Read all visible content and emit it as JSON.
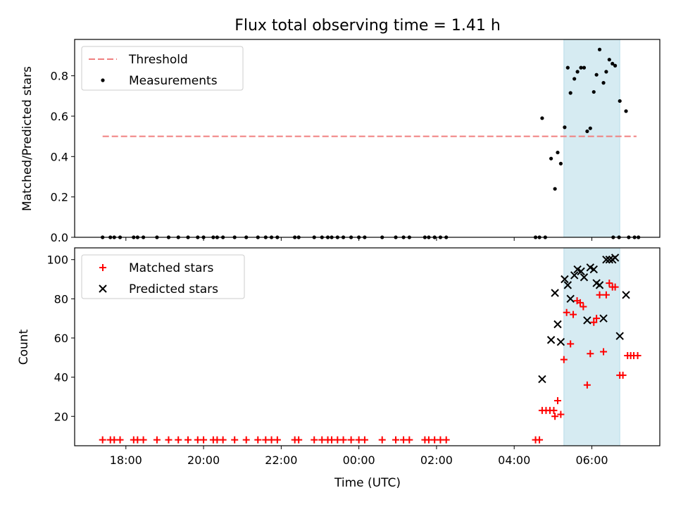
{
  "chart_data": {
    "type": "scatter",
    "title": "Flux total observing time = 1.41 h",
    "xlabel": "Time (UTC)",
    "x_tick_labels": [
      "18:00",
      "20:00",
      "22:00",
      "00:00",
      "02:00",
      "04:00",
      "06:00"
    ],
    "x_tick_hours": [
      18,
      20,
      22,
      24,
      26,
      28,
      30
    ],
    "xlim_hours": [
      16.68,
      31.75
    ],
    "shaded_span_hours": [
      29.28,
      30.72
    ],
    "colors": {
      "threshold": "#f08080",
      "matched": "#ff0000",
      "predicted": "#000000",
      "span": "#add8e6"
    },
    "panels": [
      {
        "ylabel": "Matched/Predicted stars",
        "ylim": [
          0,
          0.98
        ],
        "y_ticks": [
          "0.0",
          "0.2",
          "0.4",
          "0.6",
          "0.8"
        ],
        "y_tick_values": [
          0,
          0.2,
          0.4,
          0.6,
          0.8
        ],
        "legend": {
          "placement": "upper left",
          "entries": [
            "Threshold",
            "Measurements"
          ]
        },
        "threshold": {
          "name": "Threshold",
          "y": 0.5,
          "x_range_hours": [
            17.4,
            31.15
          ]
        },
        "series": [
          {
            "name": "Measurements",
            "marker": "dot",
            "points": [
              [
                17.4,
                0
              ],
              [
                17.6,
                0
              ],
              [
                17.7,
                0
              ],
              [
                17.85,
                0
              ],
              [
                18.2,
                0
              ],
              [
                18.3,
                0
              ],
              [
                18.45,
                0
              ],
              [
                18.8,
                0
              ],
              [
                19.1,
                0
              ],
              [
                19.35,
                0
              ],
              [
                19.6,
                0
              ],
              [
                19.85,
                0
              ],
              [
                20.0,
                0
              ],
              [
                20.25,
                0
              ],
              [
                20.35,
                0
              ],
              [
                20.5,
                0
              ],
              [
                20.8,
                0
              ],
              [
                21.1,
                0
              ],
              [
                21.4,
                0
              ],
              [
                21.6,
                0
              ],
              [
                21.75,
                0
              ],
              [
                21.9,
                0
              ],
              [
                22.35,
                0
              ],
              [
                22.45,
                0
              ],
              [
                22.85,
                0
              ],
              [
                23.05,
                0
              ],
              [
                23.2,
                0
              ],
              [
                23.3,
                0
              ],
              [
                23.45,
                0
              ],
              [
                23.6,
                0
              ],
              [
                23.8,
                0
              ],
              [
                24.0,
                0
              ],
              [
                24.15,
                0
              ],
              [
                24.6,
                0
              ],
              [
                24.95,
                0
              ],
              [
                25.15,
                0
              ],
              [
                25.3,
                0
              ],
              [
                25.7,
                0
              ],
              [
                25.8,
                0
              ],
              [
                25.95,
                0
              ],
              [
                26.1,
                0
              ],
              [
                26.25,
                0
              ],
              [
                28.55,
                0
              ],
              [
                28.65,
                0
              ],
              [
                28.8,
                0
              ],
              [
                30.55,
                0
              ],
              [
                30.7,
                0
              ],
              [
                30.95,
                0
              ],
              [
                31.1,
                0
              ],
              [
                31.2,
                0
              ],
              [
                28.72,
                0.59
              ],
              [
                28.95,
                0.39
              ],
              [
                29.05,
                0.24
              ],
              [
                29.12,
                0.42
              ],
              [
                29.2,
                0.365
              ],
              [
                29.3,
                0.545
              ],
              [
                29.38,
                0.84
              ],
              [
                29.45,
                0.715
              ],
              [
                29.55,
                0.785
              ],
              [
                29.63,
                0.82
              ],
              [
                29.72,
                0.84
              ],
              [
                29.8,
                0.84
              ],
              [
                29.88,
                0.525
              ],
              [
                29.96,
                0.54
              ],
              [
                30.05,
                0.72
              ],
              [
                30.12,
                0.805
              ],
              [
                30.2,
                0.93
              ],
              [
                30.3,
                0.765
              ],
              [
                30.37,
                0.82
              ],
              [
                30.45,
                0.88
              ],
              [
                30.53,
                0.86
              ],
              [
                30.6,
                0.85
              ],
              [
                30.72,
                0.675
              ],
              [
                30.88,
                0.625
              ]
            ]
          }
        ]
      },
      {
        "ylabel": "Count",
        "ylim": [
          5,
          106
        ],
        "y_ticks": [
          "20",
          "40",
          "60",
          "80",
          "100"
        ],
        "y_tick_values": [
          20,
          40,
          60,
          80,
          100
        ],
        "legend": {
          "placement": "upper left",
          "entries": [
            "Matched stars",
            "Predicted stars"
          ]
        },
        "series": [
          {
            "name": "Matched stars",
            "marker": "plus",
            "points": [
              [
                17.4,
                8
              ],
              [
                17.6,
                8
              ],
              [
                17.7,
                8
              ],
              [
                17.85,
                8
              ],
              [
                18.2,
                8
              ],
              [
                18.3,
                8
              ],
              [
                18.45,
                8
              ],
              [
                18.8,
                8
              ],
              [
                19.1,
                8
              ],
              [
                19.35,
                8
              ],
              [
                19.6,
                8
              ],
              [
                19.85,
                8
              ],
              [
                20.0,
                8
              ],
              [
                20.25,
                8
              ],
              [
                20.35,
                8
              ],
              [
                20.5,
                8
              ],
              [
                20.8,
                8
              ],
              [
                21.1,
                8
              ],
              [
                21.4,
                8
              ],
              [
                21.6,
                8
              ],
              [
                21.75,
                8
              ],
              [
                21.9,
                8
              ],
              [
                22.35,
                8
              ],
              [
                22.45,
                8
              ],
              [
                22.85,
                8
              ],
              [
                23.05,
                8
              ],
              [
                23.2,
                8
              ],
              [
                23.3,
                8
              ],
              [
                23.45,
                8
              ],
              [
                23.6,
                8
              ],
              [
                23.8,
                8
              ],
              [
                24.0,
                8
              ],
              [
                24.15,
                8
              ],
              [
                24.6,
                8
              ],
              [
                24.95,
                8
              ],
              [
                25.15,
                8
              ],
              [
                25.3,
                8
              ],
              [
                25.7,
                8
              ],
              [
                25.8,
                8
              ],
              [
                25.95,
                8
              ],
              [
                26.1,
                8
              ],
              [
                26.25,
                8
              ],
              [
                28.55,
                8
              ],
              [
                28.65,
                8
              ],
              [
                28.72,
                23
              ],
              [
                28.82,
                23
              ],
              [
                28.92,
                23
              ],
              [
                29.02,
                23
              ],
              [
                29.05,
                20
              ],
              [
                29.12,
                28
              ],
              [
                29.2,
                21
              ],
              [
                29.28,
                49
              ],
              [
                29.35,
                73
              ],
              [
                29.45,
                57
              ],
              [
                29.52,
                72
              ],
              [
                29.62,
                79
              ],
              [
                29.7,
                78
              ],
              [
                29.78,
                76
              ],
              [
                29.88,
                36
              ],
              [
                29.96,
                52
              ],
              [
                30.05,
                68
              ],
              [
                30.12,
                70
              ],
              [
                30.2,
                82
              ],
              [
                30.3,
                53
              ],
              [
                30.37,
                82
              ],
              [
                30.45,
                88
              ],
              [
                30.53,
                86
              ],
              [
                30.6,
                86
              ],
              [
                30.72,
                41
              ],
              [
                30.8,
                41
              ],
              [
                30.92,
                51
              ],
              [
                31.0,
                51
              ],
              [
                31.08,
                51
              ],
              [
                31.18,
                51
              ]
            ]
          },
          {
            "name": "Predicted stars",
            "marker": "x",
            "points": [
              [
                28.72,
                39
              ],
              [
                28.95,
                59
              ],
              [
                29.05,
                83
              ],
              [
                29.12,
                67
              ],
              [
                29.2,
                58
              ],
              [
                29.3,
                90
              ],
              [
                29.38,
                87
              ],
              [
                29.45,
                80
              ],
              [
                29.55,
                92
              ],
              [
                29.63,
                95
              ],
              [
                29.72,
                94
              ],
              [
                29.8,
                91
              ],
              [
                29.88,
                69
              ],
              [
                29.96,
                96
              ],
              [
                30.05,
                95
              ],
              [
                30.12,
                88
              ],
              [
                30.2,
                87
              ],
              [
                30.3,
                70
              ],
              [
                30.37,
                100
              ],
              [
                30.45,
                100
              ],
              [
                30.53,
                100
              ],
              [
                30.6,
                101
              ],
              [
                30.72,
                61
              ],
              [
                30.88,
                82
              ]
            ]
          }
        ]
      }
    ]
  }
}
